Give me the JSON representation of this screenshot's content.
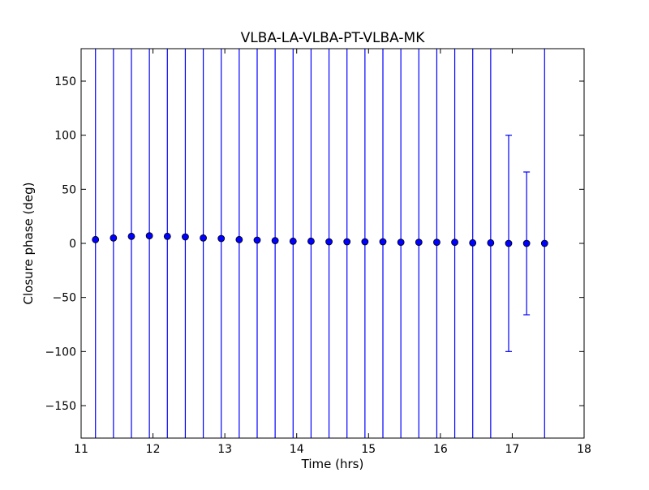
{
  "chart_data": {
    "type": "scatter",
    "title": "VLBA-LA-VLBA-PT-VLBA-MK",
    "xlabel": "Time (hrs)",
    "ylabel": "Closure phase (deg)",
    "xlim": [
      11,
      18
    ],
    "ylim": [
      -180,
      180
    ],
    "xticks": [
      11,
      12,
      13,
      14,
      15,
      16,
      17,
      18
    ],
    "xtick_labels": [
      "11",
      "12",
      "13",
      "14",
      "15",
      "16",
      "17",
      "18"
    ],
    "yticks": [
      -150,
      -100,
      -50,
      0,
      50,
      100,
      150
    ],
    "ytick_labels": [
      "−150",
      "−100",
      "−50",
      "0",
      "50",
      "100",
      "150"
    ],
    "grid": false,
    "legend": "none",
    "marker_color": "#0000ff",
    "errorbar_color": "#0000ff",
    "series": [
      {
        "x": [
          11.2,
          11.45,
          11.7,
          11.95,
          12.2,
          12.45,
          12.7,
          12.95,
          13.2,
          13.45,
          13.7,
          13.95,
          14.2,
          14.45,
          14.7,
          14.95,
          15.2,
          15.45,
          15.7,
          15.95,
          16.2,
          16.45,
          16.7,
          16.95,
          17.2,
          17.45
        ],
        "y": [
          3.5,
          5,
          6.5,
          7,
          6.5,
          6,
          5,
          4.5,
          3.5,
          3,
          2.5,
          2,
          2,
          1.5,
          1.5,
          1.5,
          1.5,
          1,
          1,
          1,
          1,
          0.5,
          0.5,
          0,
          0,
          0
        ],
        "yerr": [
          200,
          200,
          200,
          200,
          200,
          200,
          200,
          200,
          200,
          200,
          200,
          200,
          200,
          200,
          200,
          200,
          200,
          200,
          200,
          200,
          200,
          200,
          200,
          100,
          66,
          200
        ]
      }
    ]
  }
}
